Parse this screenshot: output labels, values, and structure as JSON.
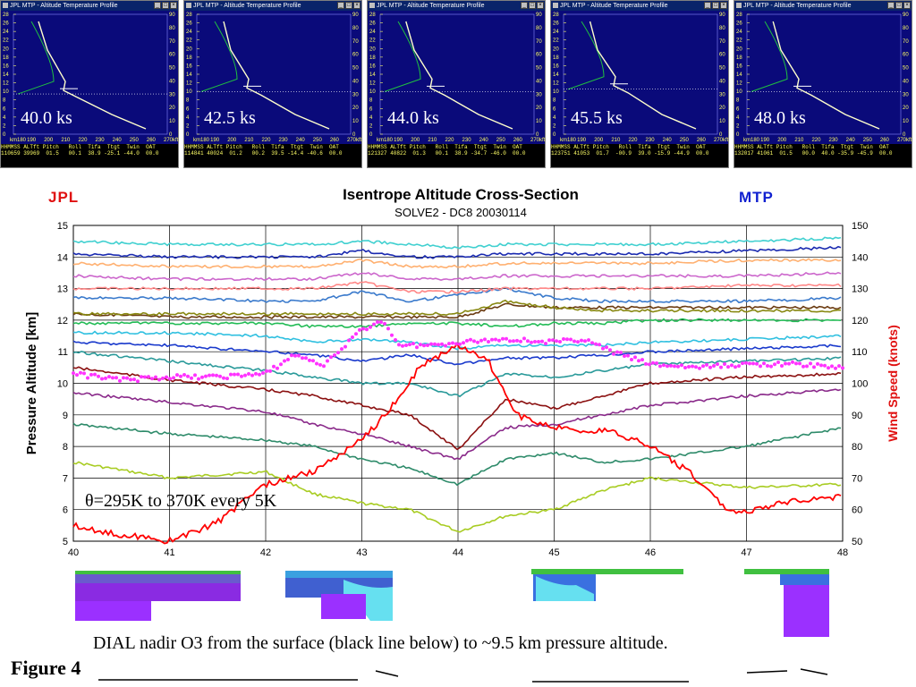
{
  "windows": [
    {
      "title": "JPL MTP - Altitude Temperature Profile",
      "ks_label": "40.0 ks",
      "footer_head": "HHMMSS ALTft Pitch   Roll  Tifa  Ttgt  Twin  OAT",
      "footer_vals": "110659 39969  01.5   00.1  38.9 -25.1 -44.0  00.0"
    },
    {
      "title": "JPL MTP - Altitude Temperature Profile",
      "ks_label": "42.5 ks",
      "footer_head": "HHMMSS ALTft Pitch   Roll  Tifa  Ttgt  Twin  OAT",
      "footer_vals": "114841 40024  01.2   00.2  39.5 -14.4 -40.6  00.0"
    },
    {
      "title": "JPL MTP - Altitude Temperature Profile",
      "ks_label": "44.0 ks",
      "footer_head": "HHMMSS ALTft Pitch   Roll  Tifa  Ttgt  Twin  OAT",
      "footer_vals": "121327 40822  01.3   00.1  38.9 -34.7 -46.0  00.0"
    },
    {
      "title": "JPL MTP - Altitude Temperature Profile",
      "ks_label": "45.5 ks",
      "footer_head": "HHMMSS ALTft Pitch   Roll  Tifa  Ttgt  Twin  OAT",
      "footer_vals": "123751 41053  01.7  -00.9  39.0 -15.9 -44.9  00.0"
    },
    {
      "title": "JPL MTP - Altitude Temperature Profile",
      "ks_label": "48.0 ks",
      "footer_head": "HHMMSS ALTft Pitch   Roll  Tifa  Ttgt  Twin  OAT",
      "footer_vals": "132017 41061  01.5   00.0  40.0 -35.9 -45.9  00.0"
    }
  ],
  "window_axes": {
    "left_ticks": [
      "28",
      "26",
      "24",
      "22",
      "20",
      "18",
      "16",
      "14",
      "12",
      "10",
      "8",
      "6",
      "4",
      "2",
      "0"
    ],
    "right_ticks": [
      "90",
      "80",
      "70",
      "60",
      "50",
      "40",
      "30",
      "20",
      "10",
      "0"
    ],
    "bottom_ticks": [
      "km180",
      "190",
      "200",
      "210",
      "220",
      "230",
      "240",
      "250",
      "260",
      "270kft"
    ]
  },
  "labels": {
    "left_brand": "JPL",
    "right_brand": "MTP",
    "dial_caption": "DIAL nadir O3 from the surface (black line below)  to ~9.5 km pressure altitude.",
    "figure": "Figure 4"
  },
  "colors": {
    "window_bg": "#0a0a7a",
    "wind_speed": "#ff0000",
    "trop_dots": "#ff33ff",
    "brand_left": "#e01010",
    "brand_right": "#1020d0"
  },
  "chart_data": {
    "type": "line",
    "title": "Isentrope Altitude Cross-Section",
    "subtitle": "SOLVE2 - DC8   20030114",
    "ylabel": "Pressure Altitude [km]",
    "y2label": "Wind Speed (knots)",
    "annotation": "θ=295K to 370K every 5K",
    "xlim": [
      40,
      48
    ],
    "ylim": [
      5,
      15
    ],
    "y2lim": [
      50,
      150
    ],
    "x_ticks": [
      "40",
      "41",
      "42",
      "43",
      "44",
      "45",
      "46",
      "47",
      "48"
    ],
    "y_ticks": [
      "5",
      "6",
      "7",
      "8",
      "9",
      "10",
      "11",
      "12",
      "13",
      "14",
      "15"
    ],
    "y2_ticks": [
      "50",
      "60",
      "70",
      "80",
      "90",
      "100",
      "110",
      "120",
      "130",
      "140",
      "150"
    ],
    "grid": true,
    "x": [
      40,
      41,
      42,
      42.5,
      43,
      43.5,
      44,
      44.5,
      45,
      45.5,
      46,
      47,
      48
    ],
    "isentropes": [
      {
        "theta": 295,
        "color": "#a8cc22",
        "values": [
          7.5,
          7.0,
          7.2,
          6.5,
          6.2,
          6.0,
          5.3,
          5.8,
          6.0,
          6.6,
          7.0,
          6.7,
          6.8
        ]
      },
      {
        "theta": 300,
        "color": "#2e8b6a",
        "values": [
          8.7,
          8.4,
          8.2,
          8.0,
          7.6,
          7.3,
          6.8,
          7.6,
          7.8,
          7.5,
          7.6,
          8.0,
          8.6
        ]
      },
      {
        "theta": 305,
        "color": "#8a2a8a",
        "values": [
          9.7,
          9.4,
          9.1,
          8.7,
          8.4,
          8.0,
          7.6,
          8.6,
          8.7,
          9.0,
          9.3,
          9.6,
          9.8
        ]
      },
      {
        "theta": 310,
        "color": "#8b1010",
        "values": [
          10.5,
          10.1,
          9.8,
          9.6,
          9.3,
          9.0,
          7.9,
          9.5,
          9.2,
          9.6,
          10.0,
          10.2,
          10.3
        ]
      },
      {
        "theta": 315,
        "color": "#2a9a9a",
        "values": [
          11.0,
          10.7,
          10.4,
          10.2,
          10.0,
          10.0,
          9.6,
          10.3,
          10.2,
          10.4,
          10.6,
          10.7,
          10.8
        ]
      },
      {
        "theta": 320,
        "color": "#1a3acc",
        "values": [
          11.3,
          11.2,
          11.0,
          10.9,
          10.7,
          10.9,
          10.6,
          10.8,
          10.8,
          10.9,
          11.0,
          11.1,
          11.2
        ]
      },
      {
        "theta": 325,
        "color": "#30c0e0",
        "values": [
          11.6,
          11.6,
          11.5,
          11.3,
          11.4,
          11.3,
          11.1,
          11.2,
          11.2,
          11.2,
          11.3,
          11.4,
          11.5
        ]
      },
      {
        "theta": 330,
        "color": "#22bb55",
        "values": [
          11.9,
          11.9,
          11.9,
          11.8,
          11.8,
          11.9,
          11.9,
          11.8,
          11.9,
          11.9,
          12.0,
          12.0,
          12.0
        ]
      },
      {
        "theta": 335,
        "color": "#6a3a10",
        "values": [
          12.2,
          12.1,
          12.1,
          12.1,
          12.1,
          12.1,
          12.1,
          12.5,
          12.4,
          12.4,
          12.4,
          12.4,
          12.4
        ]
      },
      {
        "theta": 340,
        "color": "#888811",
        "values": [
          12.2,
          12.2,
          12.2,
          12.2,
          12.2,
          12.2,
          12.2,
          12.6,
          12.4,
          12.3,
          12.3,
          12.3,
          12.3
        ]
      },
      {
        "theta": 345,
        "color": "#3a7acc",
        "values": [
          12.7,
          12.7,
          12.6,
          12.6,
          12.9,
          12.6,
          12.8,
          13.0,
          12.7,
          12.6,
          12.6,
          12.6,
          12.7
        ]
      },
      {
        "theta": 350,
        "color": "#ff8888",
        "values": [
          13.0,
          13.0,
          13.0,
          13.0,
          13.2,
          12.9,
          12.9,
          13.0,
          13.0,
          13.0,
          13.0,
          13.1,
          13.1
        ]
      },
      {
        "theta": 355,
        "color": "#cc66cc",
        "values": [
          13.4,
          13.3,
          13.3,
          13.3,
          13.5,
          13.3,
          13.3,
          13.4,
          13.4,
          13.4,
          13.4,
          13.4,
          13.5
        ]
      },
      {
        "theta": 360,
        "color": "#ffb070",
        "values": [
          13.8,
          13.7,
          13.7,
          13.7,
          13.9,
          13.7,
          13.7,
          13.8,
          13.8,
          13.8,
          13.8,
          13.9,
          13.9
        ]
      },
      {
        "theta": 365,
        "color": "#1a2ab0",
        "values": [
          14.1,
          14.0,
          14.0,
          14.0,
          14.2,
          14.0,
          14.0,
          14.1,
          14.1,
          14.1,
          14.1,
          14.2,
          14.3
        ]
      },
      {
        "theta": 370,
        "color": "#40d0d0",
        "values": [
          14.5,
          14.4,
          14.4,
          14.4,
          14.5,
          14.4,
          14.3,
          14.4,
          14.4,
          14.4,
          14.4,
          14.5,
          14.6
        ]
      }
    ],
    "wind_speed": {
      "color": "#ff0000",
      "x": [
        40,
        40.5,
        41,
        41.5,
        42,
        42.5,
        43,
        43.3,
        43.6,
        44,
        44.3,
        44.6,
        45,
        45.3,
        45.6,
        46,
        46.4,
        46.8,
        47,
        47.5,
        48
      ],
      "values": [
        55,
        52,
        50,
        56,
        68,
        72,
        82,
        92,
        105,
        112,
        108,
        90,
        86,
        85,
        85,
        80,
        72,
        60,
        59,
        63,
        64
      ]
    },
    "tropopause": {
      "color": "#ff33ff",
      "x": [
        40,
        40.5,
        41,
        41.5,
        42,
        42.3,
        42.6,
        43,
        43.2,
        43.4,
        43.7,
        44,
        44.5,
        45,
        45.3,
        45.6,
        46,
        46.5,
        47,
        47.5,
        48
      ],
      "values": [
        10.3,
        10.1,
        10.2,
        10.2,
        10.3,
        10.9,
        10.6,
        11.7,
        12.0,
        11.2,
        11.2,
        11.3,
        11.4,
        11.3,
        11.4,
        11.0,
        10.6,
        10.5,
        10.6,
        10.6,
        10.5
      ]
    }
  }
}
